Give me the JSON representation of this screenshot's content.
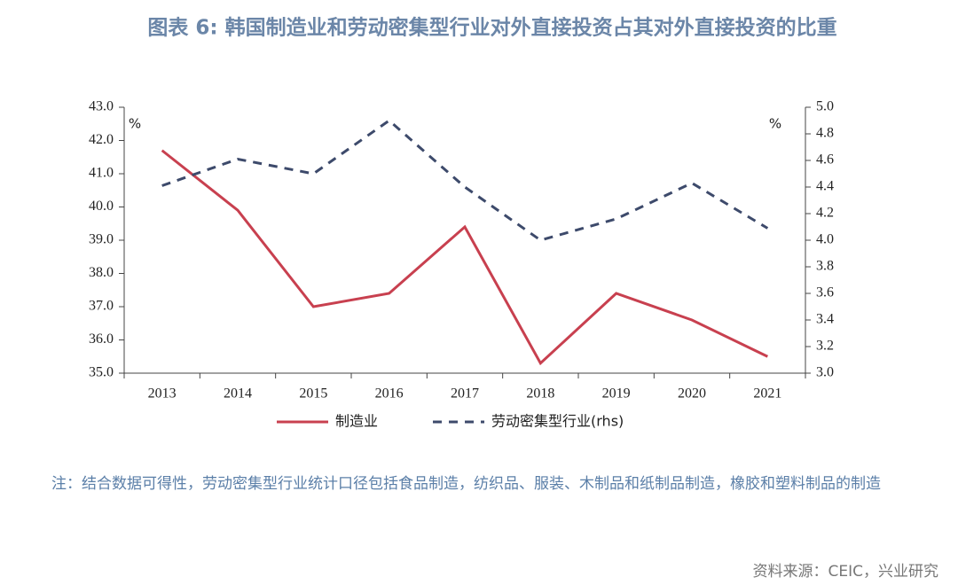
{
  "chart_data": {
    "type": "line",
    "title": "图表 6: 韩国制造业和劳动密集型行业对外直接投资占其对外直接投资的比重",
    "y_unit_label": "%",
    "y2_unit_label": "%",
    "categories": [
      "2013",
      "2014",
      "2015",
      "2016",
      "2017",
      "2018",
      "2019",
      "2020",
      "2021"
    ],
    "series": [
      {
        "name": "制造业",
        "color": "#c8404f",
        "dashed": false,
        "values": [
          41.7,
          39.9,
          37.0,
          37.4,
          39.4,
          35.3,
          37.4,
          36.6,
          35.5
        ]
      },
      {
        "name": "劳动密集型行业(rhs)",
        "color": "#3d4a6b",
        "dashed": true,
        "axis": "y2",
        "values": [
          4.41,
          4.61,
          4.5,
          4.9,
          4.4,
          4.0,
          4.16,
          4.43,
          4.09
        ]
      }
    ],
    "ylim": [
      35,
      43
    ],
    "yticks": [
      {
        "value": 35,
        "label": "35.0"
      },
      {
        "value": 36,
        "label": "36.0"
      },
      {
        "value": 37,
        "label": "37.0"
      },
      {
        "value": 38,
        "label": "38.0"
      },
      {
        "value": 39,
        "label": "39.0"
      },
      {
        "value": 40,
        "label": "40.0"
      },
      {
        "value": 41,
        "label": "41.0"
      },
      {
        "value": 42,
        "label": "42.0"
      },
      {
        "value": 43,
        "label": "43.0"
      }
    ],
    "y2lim": [
      3,
      5
    ],
    "y2ticks": [
      {
        "value": 3,
        "label": "3.0"
      },
      {
        "value": 3.2,
        "label": "3.2"
      },
      {
        "value": 3.4,
        "label": "3.4"
      },
      {
        "value": 3.6,
        "label": "3.6"
      },
      {
        "value": 3.8,
        "label": "3.8"
      },
      {
        "value": 4,
        "label": "4.0"
      },
      {
        "value": 4.2,
        "label": "4.2"
      },
      {
        "value": 4.4,
        "label": "4.4"
      },
      {
        "value": 4.6,
        "label": "4.6"
      },
      {
        "value": 4.8,
        "label": "4.8"
      },
      {
        "value": 5,
        "label": "5.0"
      }
    ],
    "grid": false,
    "legend": "bottom",
    "note": "注：结合数据可得性，劳动密集型行业统计口径包括食品制造，纺织品、服装、木制品和纸制品制造，橡胶和塑料制品的制造",
    "source": "资料来源：CEIC，兴业研究"
  }
}
